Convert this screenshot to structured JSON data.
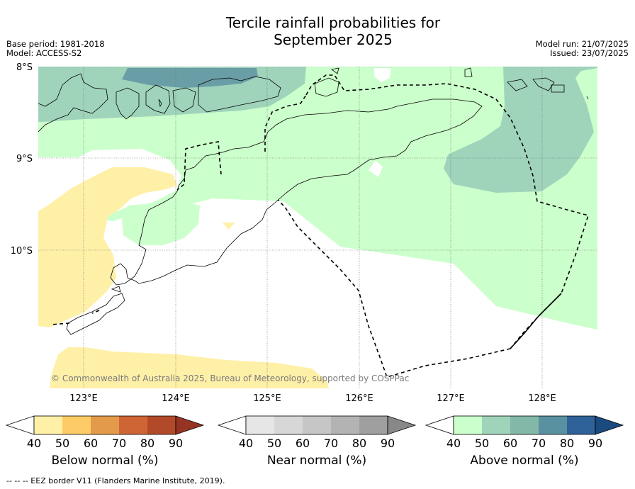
{
  "title_line1": "Tercile rainfall probabilities for",
  "title_line2": "September 2025",
  "meta_left": [
    "Base period: 1981-2018",
    "Model: ACCESS-S2"
  ],
  "meta_right": [
    "Model run: 21/07/2025",
    "Issued: 23/07/2025"
  ],
  "lat_labels": [
    "8°S",
    "9°S",
    "10°S"
  ],
  "lon_labels": [
    "123°E",
    "124°E",
    "125°E",
    "126°E",
    "127°E",
    "128°E"
  ],
  "copyright": "© Commonwealth of Australia 2025, Bureau of Meteorology, supported by COSPPac",
  "colorbars": [
    {
      "label": "Below normal (%)",
      "ticks": [
        "40",
        "50",
        "60",
        "70",
        "80",
        "90"
      ],
      "colors": [
        "#fff0a8",
        "#fdcc66",
        "#e39a4a",
        "#cf6535",
        "#b24a2a",
        "#963423"
      ]
    },
    {
      "label": "Near normal (%)",
      "ticks": [
        "40",
        "50",
        "60",
        "70",
        "80",
        "90"
      ],
      "colors": [
        "#e6e6e6",
        "#d7d7d7",
        "#c6c6c6",
        "#b3b3b3",
        "#9f9f9f",
        "#888888"
      ]
    },
    {
      "label": "Above normal (%)",
      "ticks": [
        "40",
        "50",
        "60",
        "70",
        "80",
        "90"
      ],
      "colors": [
        "#cbffcb",
        "#9fd4bb",
        "#83b8a8",
        "#5a91a1",
        "#2e6298",
        "#1a4a80"
      ]
    }
  ],
  "footnote": "-- -- -- EEZ border V11 (Flanders Marine Institute, 2019).",
  "colors": {
    "above_50": "#cbffcb",
    "above_60": "#9fd4bb",
    "above_70": "#6a9ea6",
    "below_50": "#fff0a8"
  }
}
